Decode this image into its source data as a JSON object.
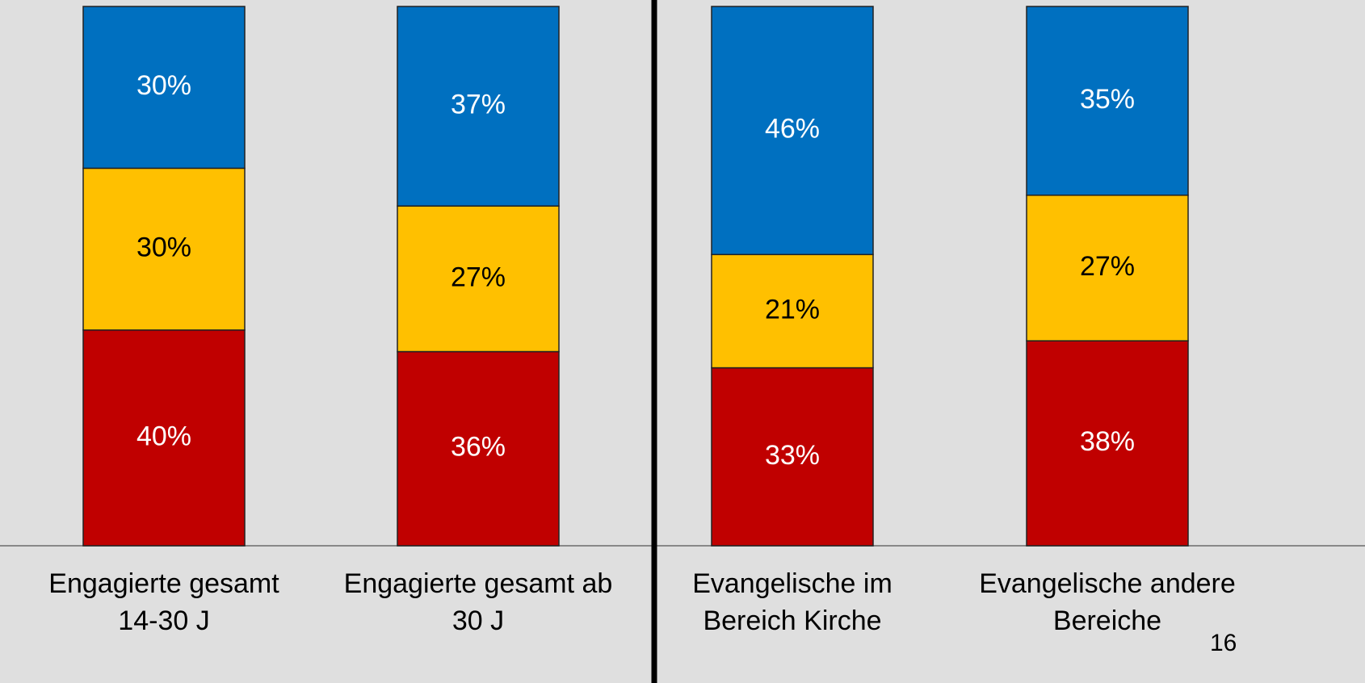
{
  "chart_data": {
    "type": "stacked_bar",
    "categories": [
      "Engagierte gesamt\n14-30 J",
      "Engagierte gesamt ab\n30 J",
      "Evangelische im\nBereich Kirche",
      "Evangelische andere\nBereiche"
    ],
    "series": [
      {
        "color": "#c00000",
        "label_color": "#ffffff",
        "values": [
          40,
          36,
          33,
          38
        ],
        "value_labels": [
          "40%",
          "36%",
          "33%",
          "38%"
        ]
      },
      {
        "color": "#ffc000",
        "label_color": "#000000",
        "values": [
          30,
          27,
          21,
          27
        ],
        "value_labels": [
          "30%",
          "27%",
          "21%",
          "27%"
        ]
      },
      {
        "color": "#0070c0",
        "label_color": "#ffffff",
        "values": [
          30,
          37,
          46,
          35
        ],
        "value_labels": [
          "30%",
          "37%",
          "46%",
          "35%"
        ]
      }
    ],
    "ylim": [
      0,
      100
    ]
  },
  "page_number": "16"
}
